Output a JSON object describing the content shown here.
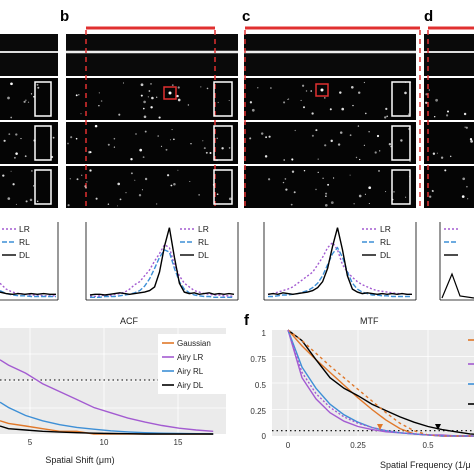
{
  "panel_letters": {
    "b": "b",
    "c": "c",
    "d": "d",
    "f": "f"
  },
  "profile_legend": [
    "LR",
    "RL",
    "DL"
  ],
  "acf": {
    "title": "ACF",
    "xlabel": "Spatial Shift (μm)",
    "xticks": [
      "5",
      "10",
      "15"
    ],
    "legend": [
      "Gaussian",
      "Airy LR",
      "Airy RL",
      "Airy DL"
    ]
  },
  "mtf": {
    "title": "MTF",
    "xlabel": "Spatial Frequency (1/μ",
    "xticks": [
      "0",
      "0.25",
      "0.5"
    ],
    "yticks": [
      "1",
      "0.75",
      "0.5",
      "0.25",
      "0"
    ]
  },
  "colors": {
    "lr": "#a35bd1",
    "rl": "#3d8fd6",
    "dl": "#000000",
    "gaussian": "#e0782a",
    "roi": "#e03030",
    "panel_bg": "#ebebeb"
  },
  "chart_data": [
    {
      "type": "line",
      "name": "profile-b",
      "x": [
        0,
        1,
        2,
        3,
        4,
        5,
        6,
        7,
        8,
        9,
        10,
        11,
        12,
        13,
        14,
        15,
        16,
        17,
        18,
        19,
        20,
        21,
        22,
        23,
        24,
        25,
        26,
        27,
        28,
        29
      ],
      "series": [
        {
          "name": "LR",
          "values": [
            0.02,
            0.02,
            0.03,
            0.04,
            0.03,
            0.05,
            0.06,
            0.08,
            0.12,
            0.18,
            0.22,
            0.3,
            0.38,
            0.5,
            0.6,
            0.72,
            0.68,
            0.45,
            0.3,
            0.2,
            0.15,
            0.1,
            0.08,
            0.06,
            0.05,
            0.04,
            0.04,
            0.03,
            0.03,
            0.02
          ]
        },
        {
          "name": "RL",
          "values": [
            0.01,
            0.01,
            0.01,
            0.02,
            0.02,
            0.02,
            0.03,
            0.04,
            0.05,
            0.07,
            0.1,
            0.16,
            0.26,
            0.4,
            0.55,
            0.65,
            0.62,
            0.4,
            0.22,
            0.12,
            0.07,
            0.04,
            0.03,
            0.02,
            0.02,
            0.01,
            0.01,
            0.01,
            0.01,
            0.01
          ]
        },
        {
          "name": "DL",
          "values": [
            0.04,
            0.05,
            0.05,
            0.04,
            0.05,
            0.06,
            0.07,
            0.06,
            0.05,
            0.06,
            0.07,
            0.08,
            0.1,
            0.15,
            0.35,
            0.7,
            0.95,
            0.55,
            0.2,
            0.08,
            0.06,
            0.07,
            0.05,
            0.06,
            0.07,
            0.05,
            0.06,
            0.05,
            0.06,
            0.05
          ]
        }
      ]
    },
    {
      "type": "line",
      "name": "profile-c",
      "x": [
        0,
        1,
        2,
        3,
        4,
        5,
        6,
        7,
        8,
        9,
        10,
        11,
        12,
        13,
        14,
        15,
        16,
        17,
        18,
        19,
        20,
        21,
        22,
        23,
        24,
        25,
        26,
        27,
        28,
        29
      ],
      "series": [
        {
          "name": "LR",
          "values": [
            0.05,
            0.06,
            0.08,
            0.1,
            0.12,
            0.15,
            0.2,
            0.25,
            0.3,
            0.35,
            0.45,
            0.55,
            0.68,
            0.75,
            0.65,
            0.45,
            0.35,
            0.28,
            0.22,
            0.18,
            0.15,
            0.12,
            0.1,
            0.09,
            0.08,
            0.07,
            0.06,
            0.06,
            0.05,
            0.05
          ]
        },
        {
          "name": "RL",
          "values": [
            0.02,
            0.02,
            0.03,
            0.04,
            0.04,
            0.05,
            0.06,
            0.08,
            0.1,
            0.14,
            0.2,
            0.3,
            0.45,
            0.6,
            0.68,
            0.55,
            0.35,
            0.2,
            0.12,
            0.08,
            0.06,
            0.04,
            0.04,
            0.03,
            0.03,
            0.02,
            0.02,
            0.02,
            0.02,
            0.02
          ]
        },
        {
          "name": "DL",
          "values": [
            0.05,
            0.06,
            0.05,
            0.07,
            0.06,
            0.05,
            0.06,
            0.07,
            0.08,
            0.1,
            0.14,
            0.22,
            0.4,
            0.7,
            0.95,
            0.65,
            0.3,
            0.12,
            0.08,
            0.06,
            0.07,
            0.06,
            0.05,
            0.06,
            0.05,
            0.06,
            0.05,
            0.06,
            0.05,
            0.05
          ]
        }
      ]
    },
    {
      "type": "line",
      "name": "profile-left",
      "x": [
        0,
        1,
        2,
        3,
        4,
        5,
        6,
        7,
        8,
        9
      ],
      "series": [
        {
          "name": "LR",
          "values": [
            0.2,
            0.12,
            0.08,
            0.06,
            0.05,
            0.04,
            0.04,
            0.03,
            0.03,
            0.03
          ]
        },
        {
          "name": "RL",
          "values": [
            0.1,
            0.06,
            0.04,
            0.03,
            0.03,
            0.02,
            0.02,
            0.02,
            0.02,
            0.02
          ]
        },
        {
          "name": "DL",
          "values": [
            0.08,
            0.06,
            0.05,
            0.06,
            0.05,
            0.06,
            0.05,
            0.06,
            0.05,
            0.05
          ]
        }
      ]
    },
    {
      "type": "line",
      "name": "acf",
      "title": "ACF",
      "xlabel": "Spatial Shift (μm)",
      "xlim": [
        2.5,
        15
      ],
      "ylim": [
        0,
        1
      ],
      "x": [
        2.5,
        3,
        4,
        5,
        6,
        7,
        8,
        9,
        10,
        11,
        12,
        13,
        14,
        15
      ],
      "series": [
        {
          "name": "Gaussian",
          "values": [
            0.05,
            0.04,
            0.03,
            0.02,
            0.01,
            0.01,
            0.0,
            0.0,
            0.0,
            0.0,
            0.0,
            0.0,
            0.0,
            0.0
          ]
        },
        {
          "name": "Airy LR",
          "values": [
            0.28,
            0.26,
            0.23,
            0.19,
            0.16,
            0.13,
            0.1,
            0.08,
            0.06,
            0.045,
            0.032,
            0.022,
            0.015,
            0.01
          ]
        },
        {
          "name": "Airy RL",
          "values": [
            0.12,
            0.1,
            0.07,
            0.05,
            0.035,
            0.025,
            0.018,
            0.012,
            0.008,
            0.005,
            0.003,
            0.002,
            0.001,
            0.0
          ]
        },
        {
          "name": "Airy DL",
          "values": [
            0.03,
            0.02,
            0.015,
            0.01,
            0.007,
            0.005,
            0.003,
            0.002,
            0.001,
            0.0,
            0.0,
            0.0,
            0.0,
            0.0
          ]
        }
      ],
      "reference_line": 0.2
    },
    {
      "type": "line",
      "name": "mtf",
      "title": "MTF",
      "xlabel": "Spatial Frequency (1/μ",
      "xlim": [
        0,
        0.7
      ],
      "ylim": [
        0,
        1
      ],
      "x": [
        0,
        0.05,
        0.1,
        0.15,
        0.2,
        0.25,
        0.3,
        0.35,
        0.4,
        0.45,
        0.5,
        0.55,
        0.6,
        0.65,
        0.7
      ],
      "series": [
        {
          "name": "Gaussian",
          "values": [
            1.0,
            0.85,
            0.72,
            0.6,
            0.48,
            0.36,
            0.25,
            0.15,
            0.07,
            0.02,
            0.01,
            0.0,
            0.0,
            0.0,
            0.0
          ]
        },
        {
          "name": "Airy LR",
          "values": [
            1.0,
            0.55,
            0.35,
            0.22,
            0.14,
            0.09,
            0.06,
            0.04,
            0.03,
            0.02,
            0.01,
            0.01,
            0.0,
            0.0,
            0.0
          ]
        },
        {
          "name": "Airy RL",
          "values": [
            1.0,
            0.65,
            0.45,
            0.3,
            0.2,
            0.13,
            0.08,
            0.05,
            0.03,
            0.02,
            0.01,
            0.0,
            0.0,
            0.0,
            0.0
          ]
        },
        {
          "name": "Airy DL",
          "values": [
            1.0,
            0.9,
            0.72,
            0.55,
            0.45,
            0.38,
            0.3,
            0.24,
            0.18,
            0.13,
            0.09,
            0.06,
            0.04,
            0.02,
            0.01
          ]
        },
        {
          "name": "Gaussian (dotted)",
          "values": [
            1.0,
            0.9,
            0.78,
            0.66,
            0.55,
            0.44,
            0.33,
            0.22,
            0.12,
            0.05,
            0.01,
            0.0,
            0.0,
            0.0,
            0.0
          ]
        },
        {
          "name": "Airy LR (dotted)",
          "values": [
            1.0,
            0.6,
            0.4,
            0.27,
            0.18,
            0.12,
            0.08,
            0.05,
            0.03,
            0.02,
            0.01,
            0.0,
            0.0,
            0.0,
            0.0
          ]
        }
      ],
      "reference_line": 0.05
    }
  ]
}
